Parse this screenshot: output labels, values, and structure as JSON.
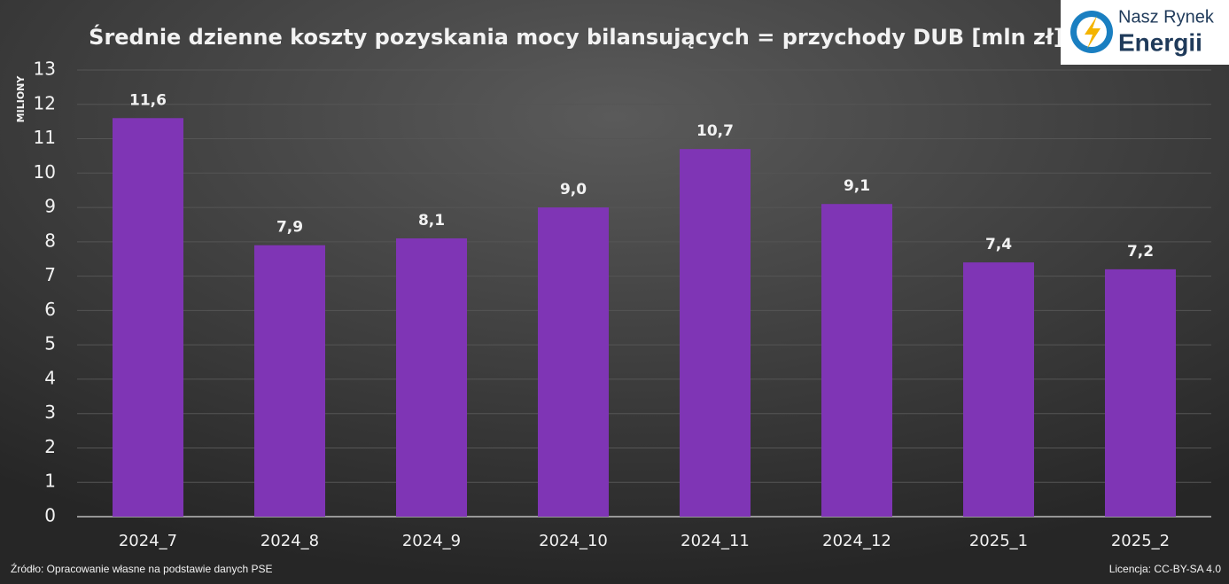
{
  "chart_data": {
    "type": "bar",
    "title": "Średnie dzienne koszty pozyskania mocy bilansujących = przychody DUB [mln zł]",
    "y_label": "MILIONY",
    "categories": [
      "2024_7",
      "2024_8",
      "2024_9",
      "2024_10",
      "2024_11",
      "2024_12",
      "2025_1",
      "2025_2"
    ],
    "values": [
      11.6,
      7.9,
      8.1,
      9.0,
      10.7,
      9.1,
      7.4,
      7.2
    ],
    "value_labels": [
      "11,6",
      "7,9",
      "8,1",
      "9,0",
      "10,7",
      "9,1",
      "7,4",
      "7,2"
    ],
    "color": "#7f35b5",
    "ylim": [
      0,
      13
    ],
    "yticks": [
      0,
      1,
      2,
      3,
      4,
      5,
      6,
      7,
      8,
      9,
      10,
      11,
      12,
      13
    ],
    "grid": true,
    "source": "Źródło: Opracowanie własne na podstawie danych PSE",
    "license": "Licencja: CC-BY-SA 4.0",
    "logo": {
      "line1": "Nasz Rynek",
      "line2": "Energii"
    }
  }
}
